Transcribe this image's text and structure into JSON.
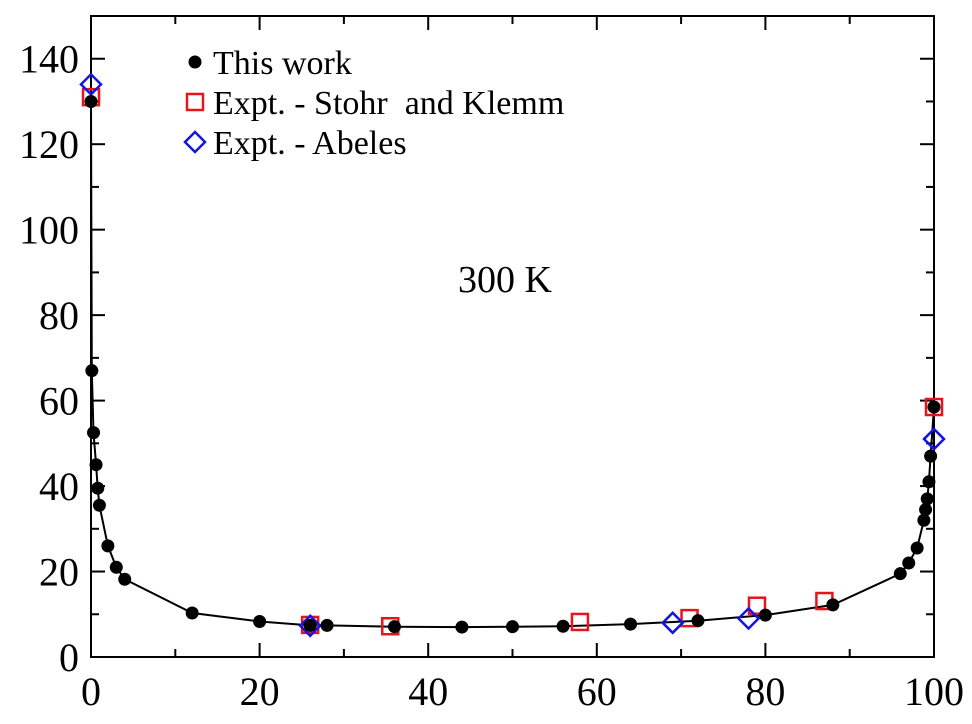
{
  "chart_data": {
    "type": "scatter",
    "xlim": [
      0,
      100
    ],
    "ylim": [
      0,
      150
    ],
    "x_ticks": [
      0,
      20,
      40,
      60,
      80,
      100
    ],
    "y_ticks": [
      0,
      20,
      40,
      60,
      80,
      100,
      120,
      140
    ],
    "grid": false,
    "legend_position": "top-left",
    "annotation": "300 K",
    "series": [
      {
        "name": "This work",
        "marker": "filled-circle",
        "color": "#000000",
        "line": true,
        "points": [
          [
            0,
            130
          ],
          [
            0.1,
            67
          ],
          [
            0.3,
            52.5
          ],
          [
            0.6,
            45
          ],
          [
            0.8,
            39.5
          ],
          [
            1,
            35.5
          ],
          [
            2,
            26
          ],
          [
            3,
            21
          ],
          [
            4,
            18.2
          ],
          [
            12,
            10.3
          ],
          [
            20,
            8.3
          ],
          [
            26,
            7.4
          ],
          [
            28,
            7.4
          ],
          [
            36,
            7.1
          ],
          [
            44,
            7.0
          ],
          [
            50,
            7.1
          ],
          [
            56,
            7.2
          ],
          [
            64,
            7.7
          ],
          [
            72,
            8.5
          ],
          [
            80,
            9.8
          ],
          [
            88,
            12.2
          ],
          [
            96,
            19.5
          ],
          [
            97,
            22
          ],
          [
            98,
            25.5
          ],
          [
            98.8,
            32
          ],
          [
            99,
            34.5
          ],
          [
            99.2,
            37
          ],
          [
            99.4,
            41
          ],
          [
            99.6,
            47
          ],
          [
            100,
            58.5
          ]
        ]
      },
      {
        "name": "Expt. - Stohr  and Klemm",
        "marker": "open-square",
        "color": "#e8141c",
        "line": false,
        "points": [
          [
            0,
            131
          ],
          [
            26,
            7.5
          ],
          [
            35.5,
            7.2
          ],
          [
            58,
            8.2
          ],
          [
            71,
            9.1
          ],
          [
            79,
            12
          ],
          [
            87,
            13.1
          ],
          [
            100,
            58.5
          ]
        ]
      },
      {
        "name": "Expt. - Abeles",
        "marker": "open-diamond",
        "color": "#1414e6",
        "line": false,
        "points": [
          [
            0,
            134
          ],
          [
            26,
            7.3
          ],
          [
            69,
            8.0
          ],
          [
            78,
            9.0
          ],
          [
            100,
            51
          ]
        ]
      }
    ]
  }
}
